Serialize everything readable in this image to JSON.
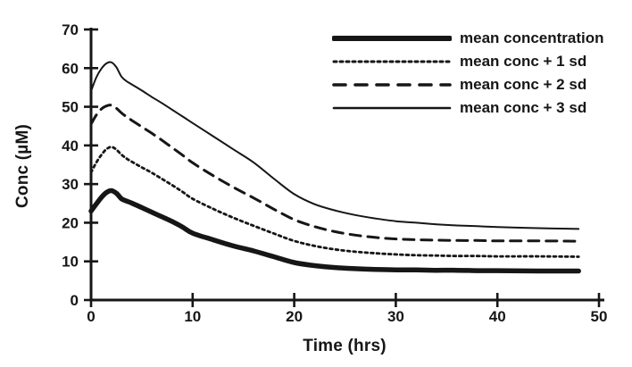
{
  "figure": {
    "background": "#ffffff",
    "ink": "#161616"
  },
  "chart_data": {
    "type": "line",
    "title": "",
    "xlabel": "Time (hrs)",
    "ylabel": "Conc (µM)",
    "xlim": [
      0,
      50
    ],
    "ylim": [
      0,
      70
    ],
    "x_ticks": [
      0,
      10,
      20,
      30,
      40,
      50
    ],
    "y_ticks": [
      0,
      10,
      20,
      30,
      40,
      50,
      60,
      70
    ],
    "grid": false,
    "legend_position": "top-right",
    "x": [
      0,
      0.5,
      1,
      1.5,
      2,
      2.5,
      3,
      3.5,
      4,
      5,
      6,
      7,
      8,
      9,
      10,
      12,
      14,
      16,
      18,
      20,
      22,
      24,
      26,
      28,
      30,
      32,
      34,
      36,
      38,
      40,
      44,
      48
    ],
    "series": [
      {
        "name": "mean concentration",
        "style": "solid-thick",
        "values": [
          23,
          24.8,
          26.5,
          27.8,
          28.3,
          27.6,
          26.2,
          25.6,
          25.1,
          23.9,
          22.7,
          21.5,
          20.3,
          18.9,
          17.3,
          15.6,
          14,
          12.7,
          11.2,
          9.7,
          8.9,
          8.4,
          8.1,
          7.9,
          7.8,
          7.8,
          7.7,
          7.7,
          7.6,
          7.6,
          7.5,
          7.5
        ]
      },
      {
        "name": "mean conc + 1 sd",
        "style": "dotted",
        "values": [
          33,
          35.5,
          37.5,
          39,
          39.6,
          38.9,
          37.6,
          36.6,
          35.8,
          34.3,
          32.9,
          31.3,
          29.7,
          28,
          26.2,
          23.6,
          21.3,
          19.2,
          17.2,
          15.3,
          14,
          13.1,
          12.5,
          12.1,
          11.8,
          11.6,
          11.5,
          11.4,
          11.4,
          11.3,
          11.3,
          11.2
        ]
      },
      {
        "name": "mean conc + 2 sd",
        "style": "dashed",
        "values": [
          45.5,
          47.8,
          49.4,
          50.2,
          50.4,
          49.6,
          48.4,
          47.4,
          46.5,
          44.8,
          43.1,
          41.3,
          39.4,
          37.5,
          35.5,
          32.2,
          29.2,
          26.4,
          23.5,
          20.8,
          19,
          17.7,
          16.8,
          16.2,
          15.8,
          15.6,
          15.5,
          15.4,
          15.4,
          15.3,
          15.3,
          15.2
        ]
      },
      {
        "name": "mean conc + 3 sd",
        "style": "solid-thin",
        "values": [
          54,
          57.5,
          59.8,
          61.2,
          61.5,
          60.2,
          57.8,
          56.6,
          55.8,
          54.2,
          52.5,
          50.9,
          49.2,
          47.5,
          45.8,
          42.4,
          39,
          35.6,
          31.4,
          27.4,
          24.8,
          23.2,
          22,
          21.1,
          20.4,
          20,
          19.6,
          19.3,
          19.1,
          18.9,
          18.6,
          18.4
        ]
      }
    ]
  }
}
